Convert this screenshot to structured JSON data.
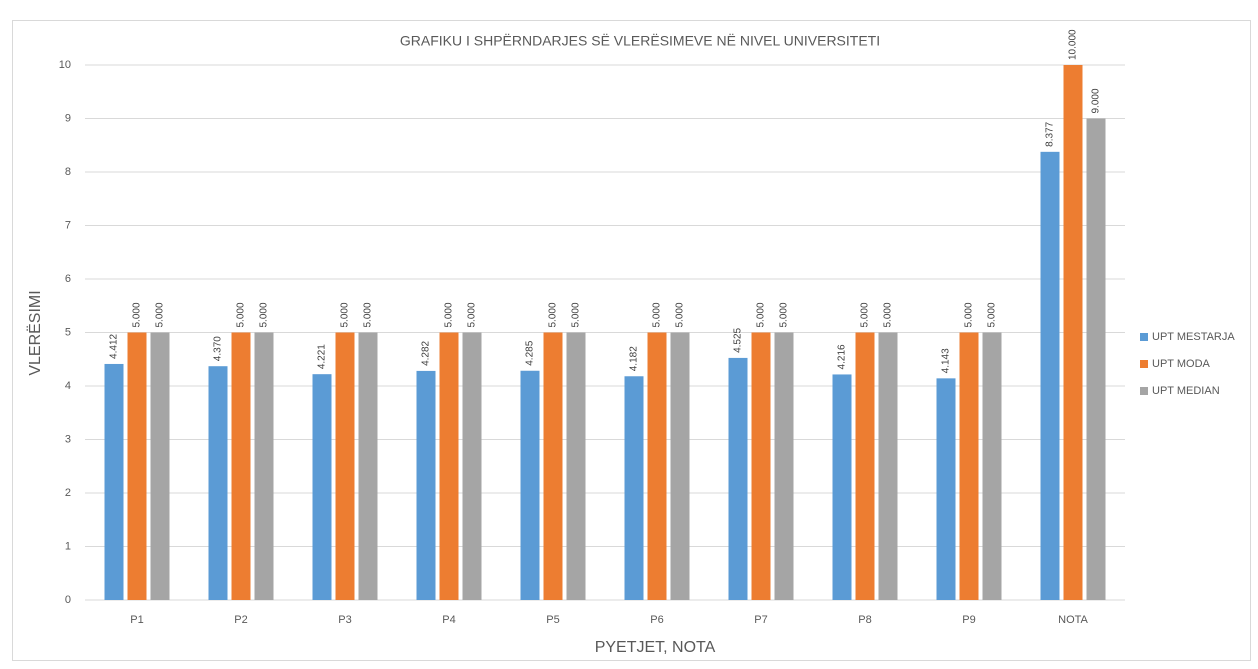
{
  "chart_data": {
    "type": "bar",
    "title": "GRAFIKU I SHPËRNDARJES SË VLERËSIMEVE NË NIVEL UNIVERSITETI",
    "xlabel": "PYETJET, NOTA",
    "ylabel": "VLERËSIMI",
    "categories": [
      "P1",
      "P2",
      "P3",
      "P4",
      "P5",
      "P6",
      "P7",
      "P8",
      "P9",
      "NOTA"
    ],
    "series": [
      {
        "name": "UPT MESTARJA",
        "color": "#5b9bd5",
        "values": [
          4.412,
          4.37,
          4.221,
          4.282,
          4.285,
          4.182,
          4.525,
          4.216,
          4.143,
          8.377
        ],
        "value_labels": [
          "4.412",
          "4.370",
          "4.221",
          "4.282",
          "4.285",
          "4.182",
          "4.525",
          "4.216",
          "4.143",
          "8.377"
        ]
      },
      {
        "name": "UPT MODA",
        "color": "#ed7d31",
        "values": [
          5,
          5,
          5,
          5,
          5,
          5,
          5,
          5,
          5,
          10
        ],
        "value_labels": [
          "5.000",
          "5.000",
          "5.000",
          "5.000",
          "5.000",
          "5.000",
          "5.000",
          "5.000",
          "5.000",
          "10.000"
        ]
      },
      {
        "name": "UPT MEDIAN",
        "color": "#a5a5a5",
        "values": [
          5,
          5,
          5,
          5,
          5,
          5,
          5,
          5,
          5,
          9
        ],
        "value_labels": [
          "5.000",
          "5.000",
          "5.000",
          "5.000",
          "5.000",
          "5.000",
          "5.000",
          "5.000",
          "5.000",
          "9.000"
        ]
      }
    ],
    "ylim": [
      0,
      10
    ],
    "yticks": [
      0,
      1,
      2,
      3,
      4,
      5,
      6,
      7,
      8,
      9,
      10
    ],
    "grid": true,
    "legend": "right"
  }
}
